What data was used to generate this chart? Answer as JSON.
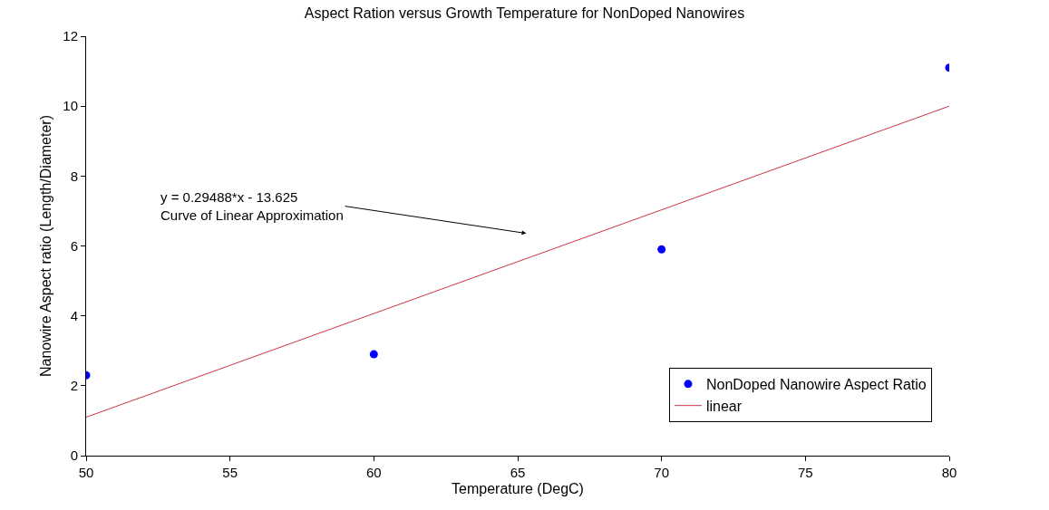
{
  "chart_data": {
    "type": "scatter",
    "title": "Aspect Ration versus Growth Temperature for NonDoped Nanowires",
    "xlabel": "Temperature (DegC)",
    "ylabel": "Nanowire Aspect ratio (Length/Diameter)",
    "x": [
      50,
      60,
      70,
      80
    ],
    "series": [
      {
        "name": "NonDoped Nanowire Aspect Ratio",
        "color": "#0000ff",
        "values": [
          2.3,
          2.9,
          5.9,
          11.1
        ],
        "marker": "circle"
      },
      {
        "name": "linear",
        "type": "line",
        "color": "#cc3344",
        "x": [
          50,
          80
        ],
        "values": [
          1.1,
          10.0
        ],
        "marker": "none"
      }
    ],
    "annotations": [
      "y = 0.29488*x - 13.625\nCurve of Linear Approximation"
    ],
    "xlim": [
      50,
      80
    ],
    "xticks": [
      50,
      55,
      60,
      65,
      70,
      75,
      80
    ],
    "ylim": [
      0,
      12
    ],
    "yticks": [
      0,
      2,
      4,
      6,
      8,
      10,
      12
    ],
    "legend": "bottom right"
  }
}
